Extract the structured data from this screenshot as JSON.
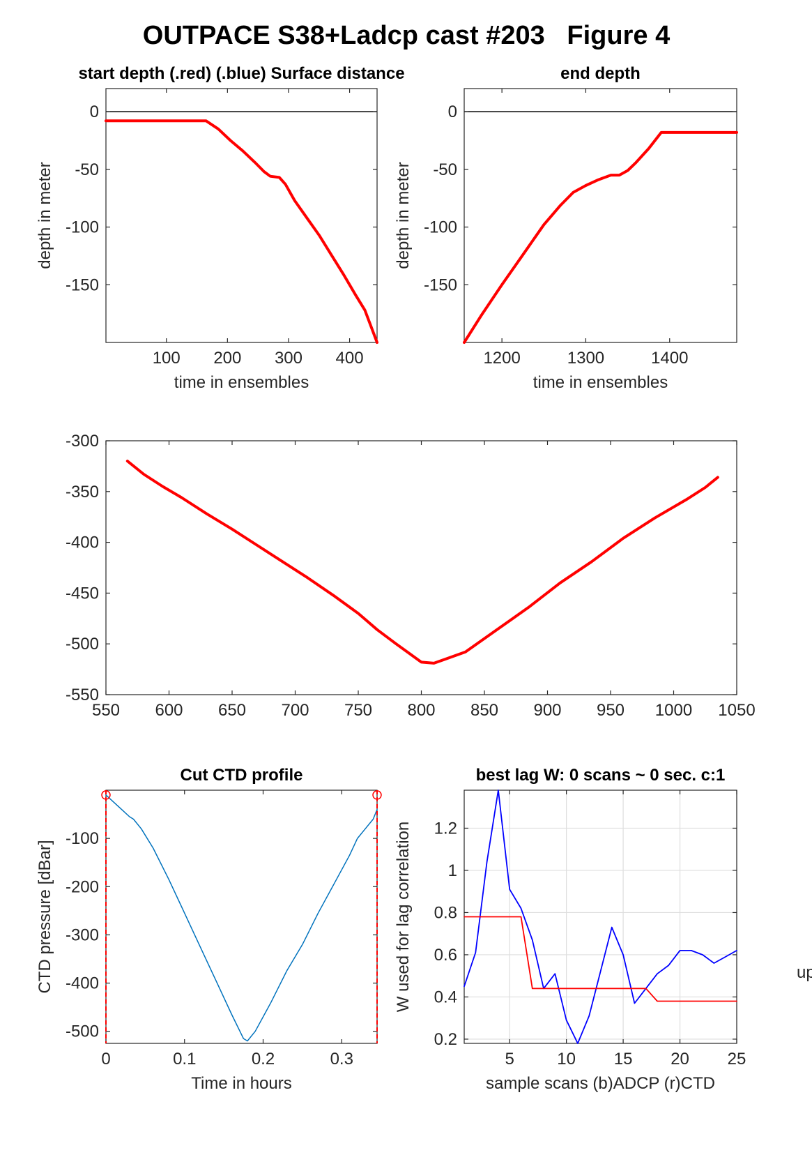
{
  "figure_title": "OUTPACE S38+Ladcp cast #203   Figure 4",
  "side_label": "up",
  "chart_data": [
    {
      "id": "p1",
      "type": "line",
      "title": "start depth (.red) (.blue) Surface distance",
      "xlabel": "time in ensembles",
      "ylabel": "depth in meter",
      "xlim": [
        1,
        445
      ],
      "ylim": [
        -200,
        20
      ],
      "xticks": [
        100,
        200,
        300,
        400
      ],
      "yticks": [
        0,
        -50,
        -100,
        -150
      ],
      "grid": false,
      "reference_lines": [
        {
          "y": 0,
          "color": "#000000"
        }
      ],
      "series": [
        {
          "color": "#ff0000",
          "width": 4,
          "x": [
            1,
            165,
            185,
            205,
            225,
            245,
            260,
            270,
            285,
            295,
            310,
            330,
            350,
            370,
            390,
            410,
            425,
            445
          ],
          "y": [
            -8,
            -8,
            -15,
            -25,
            -34,
            -44,
            -52,
            -56,
            -57,
            -63,
            -77,
            -92,
            -107,
            -124,
            -141,
            -159,
            -172,
            -200
          ]
        }
      ]
    },
    {
      "id": "p2",
      "type": "line",
      "title": "end depth",
      "xlabel": "time in ensembles",
      "ylabel": "depth in meter",
      "xlim": [
        1155,
        1480
      ],
      "ylim": [
        -200,
        20
      ],
      "xticks": [
        1200,
        1300,
        1400
      ],
      "yticks": [
        0,
        -50,
        -100,
        -150
      ],
      "grid": false,
      "reference_lines": [
        {
          "y": 0,
          "color": "#000000"
        }
      ],
      "series": [
        {
          "color": "#ff0000",
          "width": 4,
          "x": [
            1155,
            1175,
            1200,
            1225,
            1250,
            1270,
            1285,
            1300,
            1315,
            1330,
            1340,
            1350,
            1360,
            1375,
            1390,
            1480
          ],
          "y": [
            -200,
            -177,
            -150,
            -124,
            -98,
            -81,
            -70,
            -64,
            -59,
            -55,
            -55,
            -51,
            -44,
            -32,
            -18,
            -18
          ]
        }
      ]
    },
    {
      "id": "p3",
      "type": "line",
      "title": "",
      "xlabel": "",
      "ylabel": "",
      "xlim": [
        550,
        1050
      ],
      "ylim": [
        -550,
        -300
      ],
      "xticks": [
        550,
        600,
        650,
        700,
        750,
        800,
        850,
        900,
        950,
        1000,
        1050
      ],
      "yticks": [
        -300,
        -350,
        -400,
        -450,
        -500,
        -550
      ],
      "grid": false,
      "series": [
        {
          "color": "#ff0000",
          "width": 4,
          "x": [
            567,
            580,
            595,
            610,
            630,
            650,
            670,
            690,
            710,
            730,
            750,
            765,
            780,
            790,
            800,
            810,
            835,
            860,
            885,
            910,
            935,
            960,
            985,
            1010,
            1025,
            1035
          ],
          "y": [
            -320,
            -333,
            -345,
            -356,
            -372,
            -387,
            -403,
            -419,
            -435,
            -452,
            -470,
            -486,
            -500,
            -509,
            -518,
            -519,
            -508,
            -486,
            -464,
            -440,
            -419,
            -396,
            -376,
            -358,
            -346,
            -336
          ]
        }
      ]
    },
    {
      "id": "p4",
      "type": "line",
      "title": "Cut CTD profile",
      "xlabel": "Time in hours",
      "ylabel": "CTD pressure [dBar]",
      "xlim": [
        0,
        0.345
      ],
      "ylim": [
        -525,
        0
      ],
      "xticks": [
        0,
        0.1,
        0.2,
        0.3
      ],
      "yticks": [
        -100,
        -200,
        -300,
        -400,
        -500
      ],
      "grid": false,
      "markers": {
        "x": [
          0,
          0.345
        ],
        "y": [
          -10,
          -10
        ],
        "color": "#ff0000"
      },
      "vertical_lines": {
        "x": [
          0,
          0.345
        ],
        "color": "#ff0000",
        "style": "dashed"
      },
      "series": [
        {
          "color": "#0072bd",
          "width": 1.5,
          "x": [
            0,
            0.01,
            0.02,
            0.03,
            0.035,
            0.045,
            0.06,
            0.08,
            0.1,
            0.12,
            0.14,
            0.16,
            0.175,
            0.18,
            0.19,
            0.21,
            0.23,
            0.25,
            0.27,
            0.29,
            0.31,
            0.32,
            0.33,
            0.34,
            0.345
          ],
          "y": [
            -10,
            -25,
            -40,
            -55,
            -60,
            -80,
            -120,
            -185,
            -255,
            -325,
            -395,
            -465,
            -515,
            -520,
            -500,
            -440,
            -375,
            -320,
            -255,
            -195,
            -135,
            -100,
            -80,
            -60,
            -40
          ]
        }
      ]
    },
    {
      "id": "p5",
      "type": "line",
      "title": "best lag W: 0 scans ~ 0 sec.  c:1",
      "xlabel": "sample scans (b)ADCP (r)CTD",
      "ylabel": "W used for lag correlation",
      "xlim": [
        1,
        25
      ],
      "ylim": [
        0.18,
        1.38
      ],
      "xticks": [
        5,
        10,
        15,
        20,
        25
      ],
      "yticks": [
        0.2,
        0.4,
        0.6,
        0.8,
        1,
        1.2
      ],
      "grid": true,
      "series": [
        {
          "color": "#0000ff",
          "width": 1.8,
          "x": [
            1,
            2,
            3,
            4,
            5,
            6,
            7,
            8,
            9,
            10,
            11,
            12,
            13,
            14,
            15,
            16,
            17,
            18,
            19,
            20,
            21,
            22,
            23,
            24,
            25
          ],
          "y": [
            0.45,
            0.61,
            1.04,
            1.38,
            0.91,
            0.82,
            0.67,
            0.44,
            0.51,
            0.29,
            0.18,
            0.31,
            0.52,
            0.73,
            0.6,
            0.37,
            0.44,
            0.51,
            0.55,
            0.62,
            0.62,
            0.6,
            0.56,
            0.59,
            0.62
          ]
        },
        {
          "color": "#ff0000",
          "width": 1.8,
          "x": [
            1,
            2,
            3,
            4,
            5,
            6,
            7,
            8,
            9,
            10,
            11,
            12,
            13,
            14,
            15,
            16,
            17,
            18,
            19,
            20,
            21,
            22,
            23,
            24,
            25
          ],
          "y": [
            0.78,
            0.78,
            0.78,
            0.78,
            0.78,
            0.78,
            0.44,
            0.44,
            0.44,
            0.44,
            0.44,
            0.44,
            0.44,
            0.44,
            0.44,
            0.44,
            0.44,
            0.38,
            0.38,
            0.38,
            0.38,
            0.38,
            0.38,
            0.38,
            0.38
          ]
        }
      ]
    }
  ]
}
